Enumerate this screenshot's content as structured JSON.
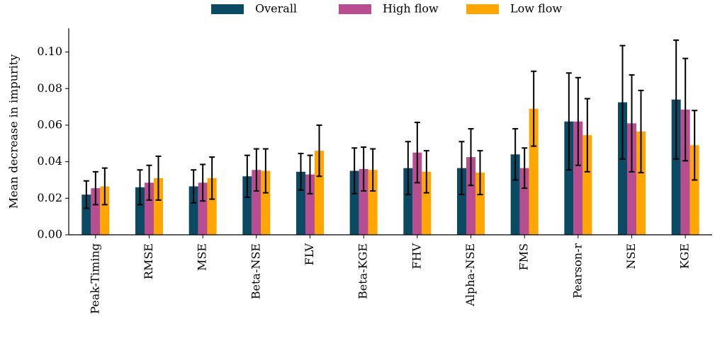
{
  "chart_data": {
    "type": "bar",
    "y_label": "Mean decrease in impurity",
    "categories": [
      "Peak-Timing",
      "RMSE",
      "MSE",
      "Beta-NSE",
      "FLV",
      "Beta-KGE",
      "FHV",
      "Alpha-NSE",
      "FMS",
      "Pearson-r",
      "NSE",
      "KGE"
    ],
    "series": [
      {
        "name": "Overall",
        "color": "#0b4a63",
        "values": [
          0.022,
          0.026,
          0.0265,
          0.032,
          0.0345,
          0.035,
          0.0365,
          0.0365,
          0.044,
          0.062,
          0.0725,
          0.074
        ],
        "errors": [
          0.0075,
          0.0095,
          0.009,
          0.0115,
          0.01,
          0.0125,
          0.0145,
          0.0145,
          0.014,
          0.0265,
          0.031,
          0.0325
        ]
      },
      {
        "name": "High flow",
        "color": "#b94d91",
        "values": [
          0.0255,
          0.0285,
          0.0285,
          0.0355,
          0.033,
          0.036,
          0.045,
          0.0425,
          0.0365,
          0.062,
          0.061,
          0.0685
        ],
        "errors": [
          0.009,
          0.0095,
          0.01,
          0.0115,
          0.0105,
          0.012,
          0.0165,
          0.0155,
          0.011,
          0.024,
          0.0265,
          0.028
        ]
      },
      {
        "name": "Low flow",
        "color": "#ffa600",
        "values": [
          0.0265,
          0.031,
          0.031,
          0.035,
          0.046,
          0.0355,
          0.0345,
          0.034,
          0.069,
          0.0545,
          0.0565,
          0.049
        ],
        "errors": [
          0.01,
          0.012,
          0.0115,
          0.012,
          0.014,
          0.0115,
          0.0115,
          0.012,
          0.0205,
          0.02,
          0.0225,
          0.019
        ]
      }
    ],
    "ylim": [
      0,
      0.113
    ],
    "yticks": [
      {
        "value": 0,
        "label": "0.00"
      },
      {
        "value": 0.02,
        "label": "0.02"
      },
      {
        "value": 0.04,
        "label": "0.04"
      },
      {
        "value": 0.06,
        "label": "0.06"
      },
      {
        "value": 0.08,
        "label": "0.08"
      },
      {
        "value": 0.1,
        "label": "0.10"
      }
    ],
    "legend": "top",
    "grid": false
  }
}
